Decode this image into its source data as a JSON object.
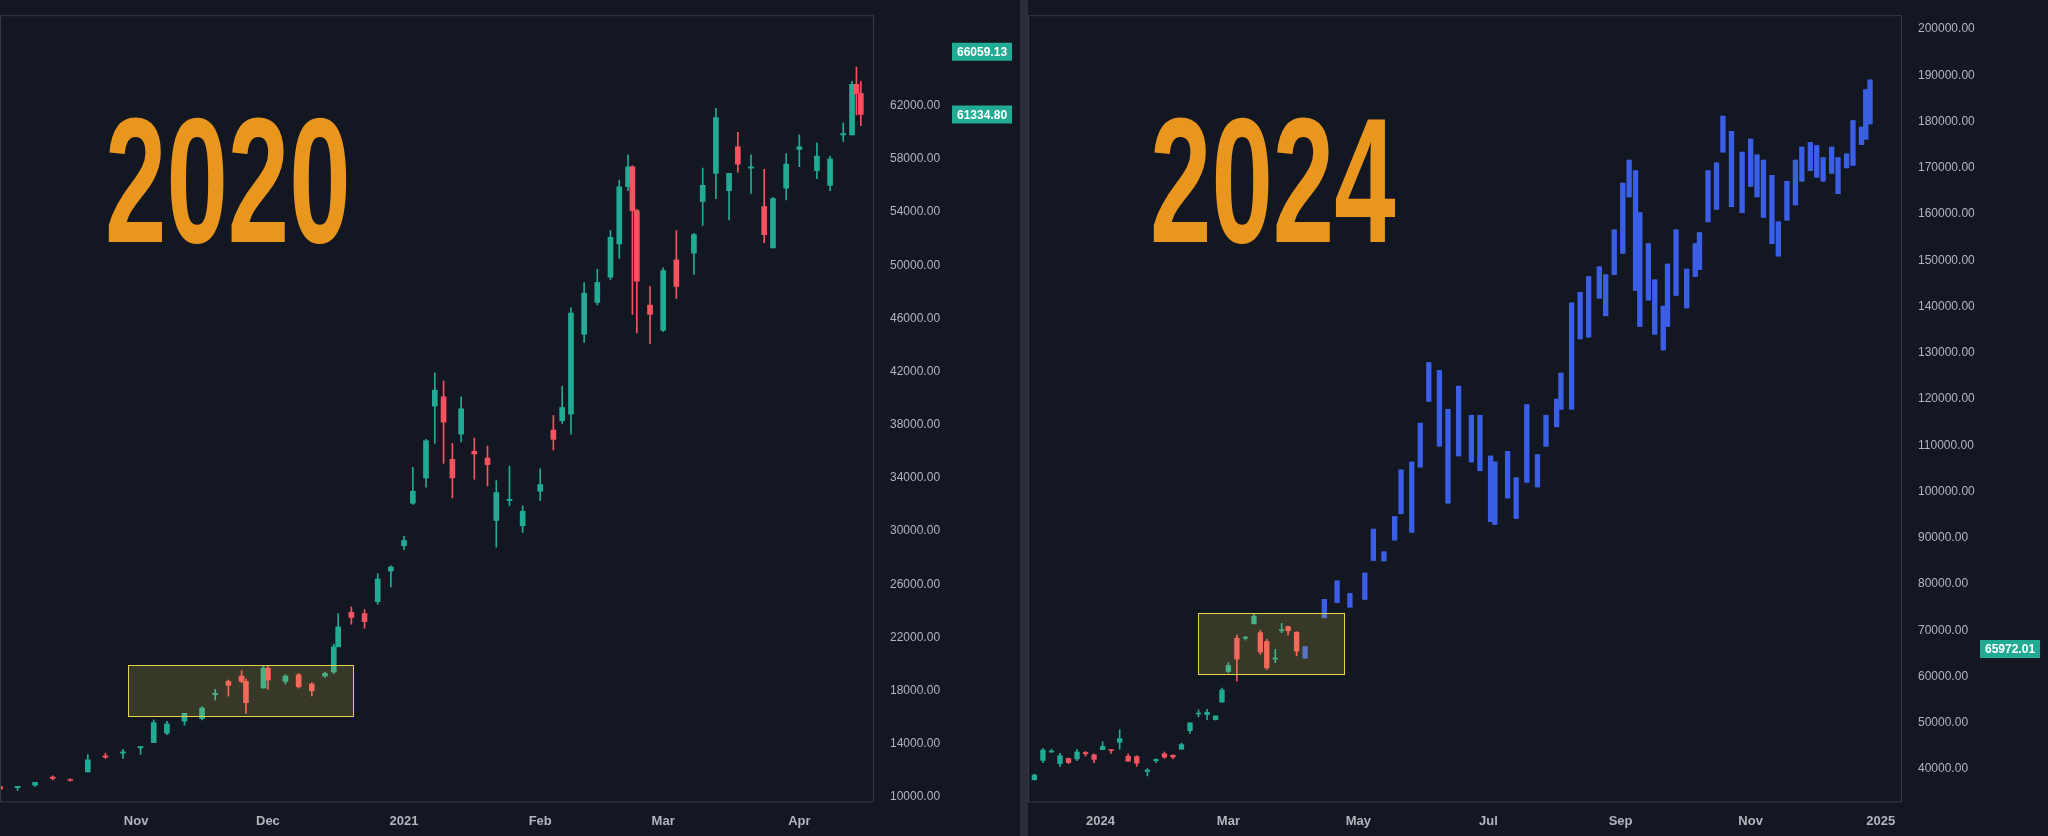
{
  "chart_data": [
    {
      "type": "candlestick",
      "title": "2020",
      "xlim": [
        "2020-10-01",
        "2021-04-18"
      ],
      "ylim": [
        9600,
        68800
      ],
      "xticks": [
        {
          "value": "2020-11-01",
          "label": "Nov"
        },
        {
          "value": "2020-12-01",
          "label": "Dec"
        },
        {
          "value": "2021-01-01",
          "label": "2021"
        },
        {
          "value": "2021-02-01",
          "label": "Feb"
        },
        {
          "value": "2021-03-01",
          "label": "Mar"
        },
        {
          "value": "2021-04-01",
          "label": "Apr"
        }
      ],
      "yticks": [
        {
          "value": 10000,
          "label": "10000.00"
        },
        {
          "value": 14000,
          "label": "14000.00"
        },
        {
          "value": 18000,
          "label": "18000.00"
        },
        {
          "value": 22000,
          "label": "22000.00"
        },
        {
          "value": 26000,
          "label": "26000.00"
        },
        {
          "value": 30000,
          "label": "30000.00"
        },
        {
          "value": 34000,
          "label": "34000.00"
        },
        {
          "value": 38000,
          "label": "38000.00"
        },
        {
          "value": 42000,
          "label": "42000.00"
        },
        {
          "value": 46000,
          "label": "46000.00"
        },
        {
          "value": 50000,
          "label": "50000.00"
        },
        {
          "value": 54000,
          "label": "54000.00"
        },
        {
          "value": 58000,
          "label": "58000.00"
        },
        {
          "value": 62000,
          "label": "62000.00"
        }
      ],
      "annotations": [
        "66059.13",
        "61334.80"
      ],
      "series": [
        {
          "x": [
            "2020-10-01",
            "2020-10-05",
            "2020-10-09",
            "2020-10-13",
            "2020-10-17",
            "2020-10-21",
            "2020-10-25",
            "2020-10-29",
            "2020-11-02",
            "2020-11-05",
            "2020-11-08",
            "2020-11-12",
            "2020-11-16",
            "2020-11-19",
            "2020-11-22",
            "2020-11-25",
            "2020-11-26",
            "2020-11-30",
            "2020-12-01",
            "2020-12-05",
            "2020-12-08",
            "2020-12-11",
            "2020-12-14",
            "2020-12-16",
            "2020-12-17",
            "2020-12-20",
            "2020-12-23",
            "2020-12-26",
            "2020-12-29",
            "2021-01-01",
            "2021-01-03",
            "2021-01-06",
            "2021-01-08",
            "2021-01-10",
            "2021-01-12",
            "2021-01-14",
            "2021-01-17",
            "2021-01-20",
            "2021-01-22",
            "2021-01-25",
            "2021-01-28",
            "2021-02-01",
            "2021-02-04",
            "2021-02-06",
            "2021-02-08",
            "2021-02-11",
            "2021-02-14",
            "2021-02-17",
            "2021-02-19",
            "2021-02-21",
            "2021-02-22",
            "2021-02-23",
            "2021-02-26",
            "2021-03-01",
            "2021-03-04",
            "2021-03-08",
            "2021-03-10",
            "2021-03-13",
            "2021-03-16",
            "2021-03-18",
            "2021-03-21",
            "2021-03-24",
            "2021-03-26",
            "2021-03-29",
            "2021-04-01",
            "2021-04-05",
            "2021-04-08",
            "2021-04-11",
            "2021-04-13",
            "2021-04-14",
            "2021-04-15"
          ],
          "ohlc": [
            [
              10800,
              10900,
              10400,
              10600
            ],
            [
              10700,
              10800,
              10500,
              10800
            ],
            [
              10900,
              11100,
              10800,
              11100
            ],
            [
              11500,
              11600,
              11300,
              11400
            ],
            [
              11300,
              11400,
              11200,
              11250
            ],
            [
              11900,
              13200,
              11900,
              12800
            ],
            [
              13100,
              13300,
              12900,
              13000
            ],
            [
              13300,
              13600,
              12900,
              13400
            ],
            [
              13700,
              13800,
              13200,
              13800
            ],
            [
              14100,
              15800,
              14100,
              15600
            ],
            [
              14800,
              15700,
              14700,
              15500
            ],
            [
              15700,
              16300,
              15400,
              16300
            ],
            [
              15900,
              16800,
              15800,
              16700
            ],
            [
              17700,
              18100,
              17300,
              17800
            ],
            [
              18700,
              18800,
              17600,
              18400
            ],
            [
              19100,
              19500,
              18600,
              18700
            ],
            [
              18700,
              18900,
              16300,
              17100
            ],
            [
              18200,
              19900,
              18200,
              19700
            ],
            [
              19700,
              19900,
              18100,
              18800
            ],
            [
              18700,
              19200,
              18500,
              19100
            ],
            [
              19200,
              19300,
              18200,
              18300
            ],
            [
              18500,
              18600,
              17600,
              18000
            ],
            [
              19100,
              19400,
              19000,
              19300
            ],
            [
              19400,
              21500,
              19300,
              21300
            ],
            [
              21300,
              23800,
              21300,
              22800
            ],
            [
              23900,
              24300,
              23000,
              23500
            ],
            [
              23800,
              24100,
              22700,
              23200
            ],
            [
              24700,
              26800,
              24500,
              26400
            ],
            [
              27000,
              27400,
              25800,
              27300
            ],
            [
              28900,
              29600,
              28600,
              29300
            ],
            [
              32100,
              34800,
              32000,
              33000
            ],
            [
              34000,
              36900,
              33300,
              36800
            ],
            [
              39400,
              41900,
              36600,
              40600
            ],
            [
              40100,
              41300,
              35100,
              38200
            ],
            [
              35400,
              36600,
              32500,
              34000
            ],
            [
              37300,
              40100,
              36700,
              39200
            ],
            [
              36000,
              37000,
              33900,
              35800
            ],
            [
              35500,
              36400,
              33400,
              35000
            ],
            [
              30800,
              33800,
              28800,
              32900
            ],
            [
              32300,
              34900,
              31900,
              32400
            ],
            [
              30400,
              31900,
              29900,
              31500
            ],
            [
              33000,
              34700,
              32300,
              33500
            ],
            [
              37600,
              38700,
              36100,
              36900
            ],
            [
              38300,
              40900,
              38100,
              39300
            ],
            [
              38800,
              46800,
              37300,
              46400
            ],
            [
              44800,
              48700,
              44200,
              47900
            ],
            [
              47200,
              49700,
              47000,
              48700
            ],
            [
              49100,
              52600,
              48900,
              52100
            ],
            [
              51600,
              56400,
              50500,
              55900
            ],
            [
              55900,
              58300,
              55600,
              57400
            ],
            [
              57400,
              57500,
              46300,
              54100
            ],
            [
              54100,
              54200,
              44900,
              48800
            ],
            [
              47000,
              48400,
              44100,
              46300
            ],
            [
              45100,
              49800,
              45000,
              49600
            ],
            [
              50400,
              52600,
              47500,
              48400
            ],
            [
              50900,
              52400,
              49300,
              52300
            ],
            [
              54800,
              57300,
              53000,
              56000
            ],
            [
              56900,
              61800,
              55000,
              61100
            ],
            [
              55600,
              56900,
              53400,
              56900
            ],
            [
              58900,
              60000,
              57000,
              57600
            ],
            [
              57300,
              58300,
              55400,
              57400
            ],
            [
              54400,
              57200,
              51700,
              52300
            ],
            [
              51300,
              55100,
              51300,
              55000
            ],
            [
              55800,
              58400,
              54900,
              57600
            ],
            [
              58700,
              59800,
              57400,
              58900
            ],
            [
              57100,
              59200,
              56500,
              58200
            ],
            [
              56000,
              58200,
              55600,
              58000
            ],
            [
              59800,
              60700,
              59300,
              59900
            ],
            [
              59800,
              63800,
              59800,
              63600
            ],
            [
              63600,
              64900,
              61300,
              62900
            ],
            [
              62900,
              63800,
              60500,
              61334.8
            ]
          ],
          "colors": [
            "#f7525f",
            "#22ab94",
            "#22ab94",
            "#f7525f",
            "#f7525f",
            "#22ab94",
            "#f7525f",
            "#22ab94",
            "#22ab94",
            "#22ab94",
            "#22ab94",
            "#22ab94",
            "#22ab94",
            "#22ab94",
            "#f7525f",
            "#f7525f",
            "#f7525f",
            "#22ab94",
            "#f7525f",
            "#22ab94",
            "#f7525f",
            "#f7525f",
            "#22ab94",
            "#22ab94",
            "#22ab94",
            "#f7525f",
            "#f7525f",
            "#22ab94",
            "#22ab94",
            "#22ab94",
            "#22ab94",
            "#22ab94",
            "#22ab94",
            "#f7525f",
            "#f7525f",
            "#22ab94",
            "#f7525f",
            "#f7525f",
            "#22ab94",
            "#22ab94",
            "#22ab94",
            "#22ab94",
            "#f7525f",
            "#22ab94",
            "#22ab94",
            "#22ab94",
            "#22ab94",
            "#22ab94",
            "#22ab94",
            "#22ab94",
            "#f7525f",
            "#f7525f",
            "#f7525f",
            "#22ab94",
            "#f7525f",
            "#22ab94",
            "#22ab94",
            "#22ab94",
            "#22ab94",
            "#f7525f",
            "#22ab94",
            "#f7525f",
            "#22ab94",
            "#22ab94",
            "#22ab94",
            "#22ab94",
            "#22ab94",
            "#22ab94",
            "#22ab94",
            "#f7525f",
            "#f7525f"
          ]
        }
      ]
    },
    {
      "type": "candlestick",
      "title": "2024",
      "xlim": [
        "2023-11-28",
        "2025-01-11"
      ],
      "ylim": [
        32800,
        203000
      ],
      "xticks": [
        {
          "value": "2024-01-01",
          "label": "2024"
        },
        {
          "value": "2024-03-01",
          "label": "Mar"
        },
        {
          "value": "2024-05-01",
          "label": "May"
        },
        {
          "value": "2024-07-01",
          "label": "Jul"
        },
        {
          "value": "2024-09-01",
          "label": "Sep"
        },
        {
          "value": "2024-11-01",
          "label": "Nov"
        },
        {
          "value": "2025-01-01",
          "label": "2025"
        }
      ],
      "yticks": [
        {
          "value": 40000,
          "label": "40000.00"
        },
        {
          "value": 50000,
          "label": "50000.00"
        },
        {
          "value": 60000,
          "label": "60000.00"
        },
        {
          "value": 70000,
          "label": "70000.00"
        },
        {
          "value": 80000,
          "label": "80000.00"
        },
        {
          "value": 90000,
          "label": "90000.00"
        },
        {
          "value": 100000,
          "label": "100000.00"
        },
        {
          "value": 110000,
          "label": "110000.00"
        },
        {
          "value": 120000,
          "label": "120000.00"
        },
        {
          "value": 130000,
          "label": "130000.00"
        },
        {
          "value": 140000,
          "label": "140000.00"
        },
        {
          "value": 150000,
          "label": "150000.00"
        },
        {
          "value": 160000,
          "label": "160000.00"
        },
        {
          "value": 170000,
          "label": "170000.00"
        },
        {
          "value": 180000,
          "label": "180000.00"
        },
        {
          "value": 190000,
          "label": "190000.00"
        },
        {
          "value": 200000,
          "label": "200000.00"
        }
      ],
      "annotations": [
        "65972.01"
      ],
      "series": [
        {
          "x": [
            "2023-12-01",
            "2023-12-05",
            "2023-12-09",
            "2023-12-13",
            "2023-12-17",
            "2023-12-21",
            "2023-12-25",
            "2023-12-29",
            "2024-01-02",
            "2024-01-06",
            "2024-01-10",
            "2024-01-14",
            "2024-01-18",
            "2024-01-23",
            "2024-01-27",
            "2024-01-31",
            "2024-02-04",
            "2024-02-08",
            "2024-02-12",
            "2024-02-16",
            "2024-02-20",
            "2024-02-24",
            "2024-02-27",
            "2024-03-01",
            "2024-03-05",
            "2024-03-09",
            "2024-03-13",
            "2024-03-16",
            "2024-03-19",
            "2024-03-23",
            "2024-03-26",
            "2024-03-29",
            "2024-04-02"
          ],
          "ohlc": [
            [
              37700,
              38900,
              37600,
              38700
            ],
            [
              41900,
              44500,
              41400,
              44100
            ],
            [
              43700,
              44300,
              43600,
              43800
            ],
            [
              41200,
              43400,
              40600,
              42900
            ],
            [
              42300,
              42400,
              41200,
              41400
            ],
            [
              42200,
              44300,
              41800,
              43700
            ],
            [
              43600,
              43800,
              42800,
              43300
            ],
            [
              43100,
              43300,
              41400,
              42100
            ],
            [
              44200,
              45900,
              44200,
              44900
            ],
            [
              44100,
              44200,
              43400,
              44000
            ],
            [
              45800,
              48500,
              44300,
              46600
            ],
            [
              42800,
              43300,
              41700,
              41700
            ],
            [
              42700,
              42900,
              40600,
              41300
            ],
            [
              39500,
              40100,
              38500,
              39800
            ],
            [
              41800,
              42200,
              41400,
              42100
            ],
            [
              43300,
              43700,
              42300,
              42600
            ],
            [
              43000,
              43100,
              42200,
              42600
            ],
            [
              44300,
              45600,
              44300,
              45300
            ],
            [
              48300,
              50000,
              47700,
              50000
            ],
            [
              51900,
              52800,
              51300,
              52100
            ],
            [
              51800,
              52900,
              50700,
              52300
            ],
            [
              50700,
              51500,
              50600,
              51500
            ],
            [
              54500,
              57500,
              54400,
              57100
            ],
            [
              61100,
              63000,
              60800,
              62400
            ],
            [
              68300,
              69000,
              59000,
              63800
            ],
            [
              68300,
              68700,
              67900,
              68500
            ],
            [
              71400,
              73600,
              71400,
              73100
            ],
            [
              69500,
              70000,
              64800,
              65300
            ],
            [
              67600,
              68100,
              61500,
              61900
            ],
            [
              63800,
              65900,
              63000,
              64000
            ],
            [
              69900,
              71500,
              69500,
              69900
            ],
            [
              70800,
              70900,
              69000,
              69900
            ],
            [
              69600,
              69700,
              64500,
              65500
            ]
          ],
          "colors": [
            "#22ab94",
            "#22ab94",
            "#22ab94",
            "#22ab94",
            "#f7525f",
            "#22ab94",
            "#f7525f",
            "#f7525f",
            "#22ab94",
            "#f7525f",
            "#22ab94",
            "#f7525f",
            "#f7525f",
            "#22ab94",
            "#22ab94",
            "#f7525f",
            "#f7525f",
            "#22ab94",
            "#22ab94",
            "#22ab94",
            "#22ab94",
            "#22ab94",
            "#22ab94",
            "#22ab94",
            "#f7525f",
            "#22ab94",
            "#22ab94",
            "#f7525f",
            "#f7525f",
            "#22ab94",
            "#22ab94",
            "#f7525f",
            "#f7525f"
          ]
        },
        {
          "color": "#3a5fe5",
          "x": [
            "2024-04-06",
            "2024-04-15",
            "2024-04-21",
            "2024-04-27",
            "2024-05-04",
            "2024-05-08",
            "2024-05-13",
            "2024-05-18",
            "2024-05-21",
            "2024-05-26",
            "2024-05-30",
            "2024-06-03",
            "2024-06-08",
            "2024-06-12",
            "2024-06-17",
            "2024-06-23",
            "2024-06-27",
            "2024-07-02",
            "2024-07-04",
            "2024-07-10",
            "2024-07-14",
            "2024-07-19",
            "2024-07-24",
            "2024-07-28",
            "2024-08-02",
            "2024-08-04",
            "2024-08-09",
            "2024-08-13",
            "2024-08-17",
            "2024-08-22",
            "2024-08-25",
            "2024-08-29",
            "2024-09-02",
            "2024-09-05",
            "2024-09-08",
            "2024-09-10",
            "2024-09-14",
            "2024-09-17",
            "2024-09-21",
            "2024-09-23",
            "2024-09-27",
            "2024-10-02",
            "2024-10-06",
            "2024-10-08",
            "2024-10-12",
            "2024-10-16",
            "2024-10-19",
            "2024-10-23",
            "2024-10-28",
            "2024-11-01",
            "2024-11-04",
            "2024-11-07",
            "2024-11-11",
            "2024-11-14",
            "2024-11-18",
            "2024-11-22",
            "2024-11-25",
            "2024-11-29",
            "2024-12-02",
            "2024-12-05",
            "2024-12-09",
            "2024-12-12",
            "2024-12-16",
            "2024-12-19",
            "2024-12-23",
            "2024-12-25",
            "2024-12-27"
          ],
          "ohlc": [
            [
              64000,
              66500,
              64000,
              66500
            ],
            [
              72700,
              76700,
              72700,
              76700
            ],
            [
              76000,
              80700,
              76000,
              80700
            ],
            [
              75000,
              78000,
              75000,
              78000
            ],
            [
              76700,
              82400,
              76700,
              82400
            ],
            [
              85100,
              91900,
              85100,
              91900
            ],
            [
              85000,
              87000,
              85000,
              87000
            ],
            [
              89500,
              94600,
              89500,
              94600
            ],
            [
              95200,
              104700,
              95200,
              104700
            ],
            [
              91200,
              106400,
              91200,
              106400
            ],
            [
              105300,
              114800,
              105300,
              114800
            ],
            [
              119500,
              127900,
              119500,
              127900
            ],
            [
              109800,
              126200,
              109800,
              126200
            ],
            [
              97500,
              117800,
              97500,
              117800
            ],
            [
              107700,
              122800,
              107700,
              122800
            ],
            [
              106400,
              116500,
              106400,
              116500
            ],
            [
              104500,
              116500,
              104500,
              116500
            ],
            [
              93500,
              107700,
              93500,
              107700
            ],
            [
              92900,
              106400,
              92900,
              106400
            ],
            [
              98600,
              108700,
              98600,
              108700
            ],
            [
              94200,
              103000,
              94200,
              103000
            ],
            [
              102000,
              118800,
              102000,
              118800
            ],
            [
              101000,
              108000,
              101000,
              108000
            ],
            [
              109800,
              116500,
              109800,
              116500
            ],
            [
              114000,
              120000,
              114000,
              120000
            ],
            [
              117800,
              125600,
              117800,
              125600
            ],
            [
              117800,
              140800,
              117800,
              140800
            ],
            [
              133000,
              143100,
              133000,
              143100
            ],
            [
              133400,
              146500,
              133400,
              146500
            ],
            [
              141800,
              148600,
              141800,
              148600
            ],
            [
              138000,
              146900,
              138000,
              146900
            ],
            [
              146900,
              156600,
              146900,
              156600
            ],
            [
              151500,
              166700,
              151500,
              166700
            ],
            [
              163700,
              171700,
              163700,
              171700
            ],
            [
              143500,
              169400,
              143500,
              169400
            ],
            [
              135700,
              160300,
              135700,
              160300
            ],
            [
              141400,
              153600,
              141400,
              153600
            ],
            [
              134000,
              145800,
              134000,
              145800
            ],
            [
              130600,
              140100,
              130600,
              140100
            ],
            [
              135700,
              149200,
              135700,
              149200
            ],
            [
              142400,
              156600,
              142400,
              156600
            ],
            [
              139700,
              148100,
              139700,
              148100
            ],
            [
              146500,
              153600,
              146500,
              153600
            ],
            [
              148000,
              156000,
              148000,
              156000
            ],
            [
              158300,
              169400,
              158300,
              169400
            ],
            [
              161000,
              171100,
              161000,
              171100
            ],
            [
              173400,
              181200,
              173400,
              181200
            ],
            [
              161600,
              177900,
              161600,
              177900
            ],
            [
              160300,
              173400,
              160300,
              173400
            ],
            [
              166000,
              176200,
              166000,
              176200
            ],
            [
              163700,
              172800,
              163700,
              172800
            ],
            [
              159300,
              171700,
              159300,
              171700
            ],
            [
              153600,
              168400,
              153600,
              168400
            ],
            [
              150900,
              158300,
              150900,
              158300
            ],
            [
              158700,
              167100,
              158700,
              167100
            ],
            [
              162000,
              171700,
              162000,
              171700
            ],
            [
              167100,
              174500,
              167100,
              174500
            ],
            [
              169400,
              175500,
              169400,
              175500
            ],
            [
              168000,
              174800,
              168000,
              174800
            ],
            [
              167100,
              172200,
              167100,
              172200
            ],
            [
              168800,
              174500,
              168800,
              174500
            ],
            [
              164400,
              172200,
              164400,
              172200
            ],
            [
              170000,
              173000,
              170000,
              173000
            ],
            [
              170500,
              180200,
              170500,
              180200
            ],
            [
              175000,
              178800,
              175000,
              178800
            ],
            [
              176200,
              186900,
              176200,
              186900
            ],
            [
              179500,
              189000,
              179500,
              189000
            ]
          ]
        }
      ]
    }
  ]
}
